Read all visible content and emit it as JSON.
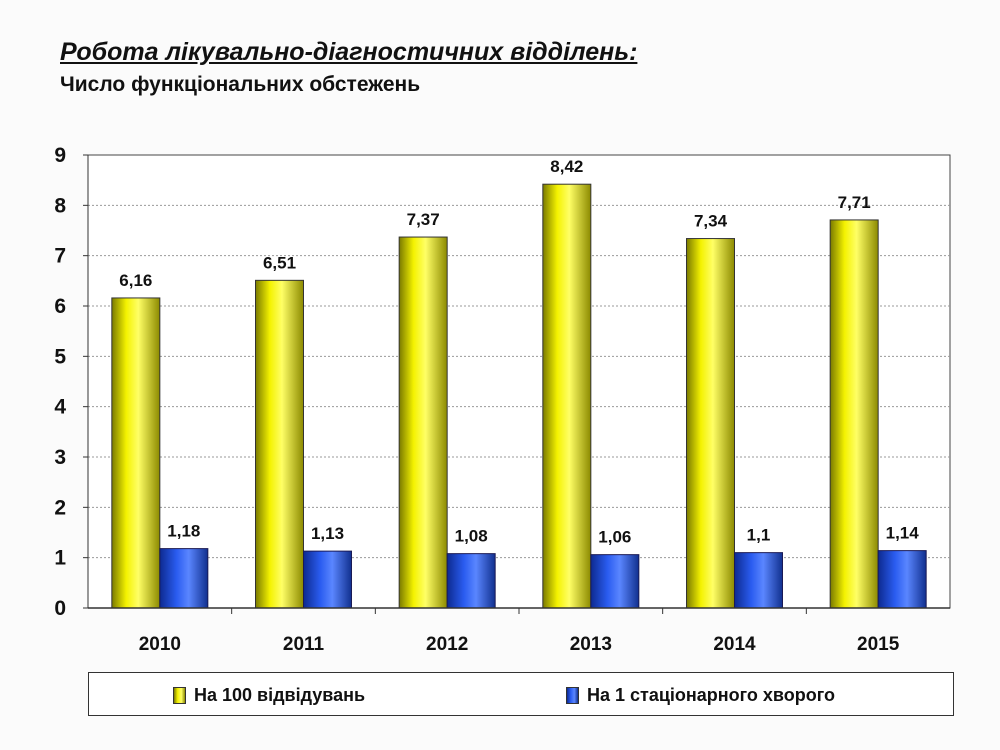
{
  "header": {
    "title": "Робота лікувально-діагностичних відділень:",
    "subtitle": "Число функціональних обстежень"
  },
  "colors": {
    "series1": "#f2f000",
    "series2": "#1f4fe0"
  },
  "chart_data": {
    "type": "bar",
    "title": "",
    "xlabel": "",
    "ylabel": "",
    "ylim": [
      0,
      9
    ],
    "yticks": [
      0,
      1,
      2,
      3,
      4,
      5,
      6,
      7,
      8,
      9
    ],
    "grid": true,
    "legend": "bottom",
    "categories": [
      "2010",
      "2011",
      "2012",
      "2013",
      "2014",
      "2015"
    ],
    "series": [
      {
        "name": "На 100 відвідувань",
        "values": [
          6.16,
          6.51,
          7.37,
          8.42,
          7.34,
          7.71
        ],
        "labels": [
          "6,16",
          "6,51",
          "7,37",
          "8,42",
          "7,34",
          "7,71"
        ]
      },
      {
        "name": "На 1 стаціонарного хворого",
        "values": [
          1.18,
          1.13,
          1.08,
          1.06,
          1.1,
          1.14
        ],
        "labels": [
          "1,18",
          "1,13",
          "1,08",
          "1,06",
          "1,1",
          "1,14"
        ]
      }
    ]
  }
}
